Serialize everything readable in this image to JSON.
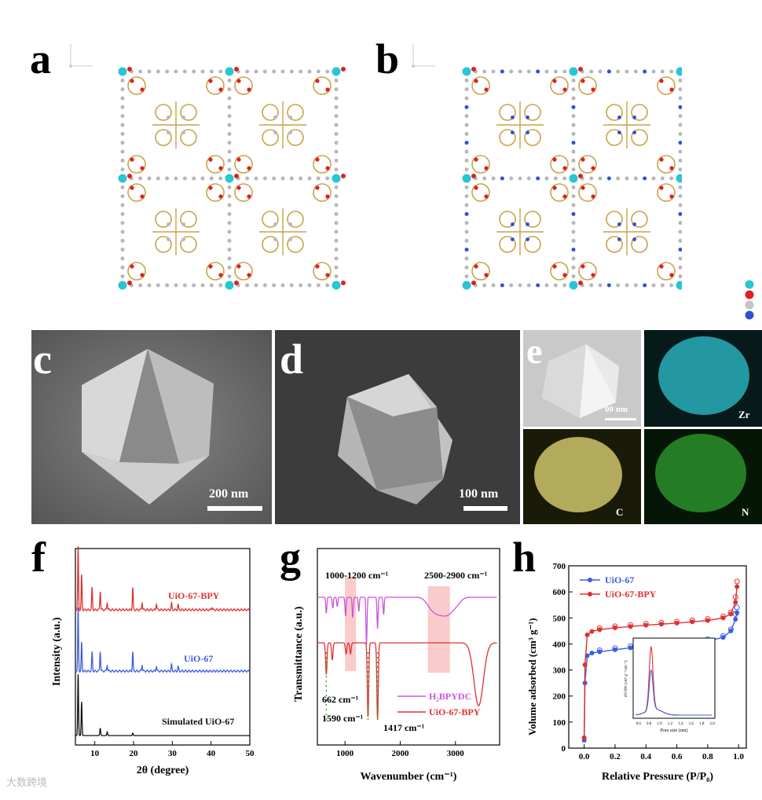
{
  "panels": {
    "a": "a",
    "b": "b",
    "c": "c",
    "d": "d",
    "e": "e",
    "f": "f",
    "g": "g",
    "h": "h"
  },
  "sem": {
    "c_scale": "200 nm",
    "d_scale": "100 nm",
    "e_scale": "00 nm",
    "eds_labels": [
      "Zr",
      "C",
      "N"
    ]
  },
  "colors": {
    "zr": "#27c6d4",
    "o": "#e02020",
    "c": "#b8b8b8",
    "n": "#3050d0",
    "bond": "#c9a24a",
    "uio67": "#3b5de0",
    "uio67bpy": "#e03030",
    "simulated": "#111111",
    "h2bpydc": "#cc55dd",
    "highlight": "#f5a0a0"
  },
  "watermark": "大数跨境",
  "chart_data": [
    {
      "panel": "f",
      "type": "line",
      "xlabel": "2θ (degree)",
      "ylabel": "Intensity (a.u.)",
      "xlim": [
        5,
        50
      ],
      "xticks": [
        10,
        20,
        30,
        40,
        50
      ],
      "series": [
        {
          "name": "UiO-67-BPY",
          "peaks": [
            [
              5.7,
              1.0
            ],
            [
              6.6,
              0.55
            ],
            [
              9.3,
              0.35
            ],
            [
              11.4,
              0.3
            ],
            [
              13.2,
              0.12
            ],
            [
              19.8,
              0.35
            ],
            [
              22.2,
              0.12
            ],
            [
              25.9,
              0.1
            ],
            [
              29.8,
              0.1
            ],
            [
              31.5,
              0.08
            ],
            [
              40.2,
              0.05
            ]
          ]
        },
        {
          "name": "UiO-67",
          "peaks": [
            [
              5.7,
              1.0
            ],
            [
              6.6,
              0.45
            ],
            [
              9.3,
              0.3
            ],
            [
              11.4,
              0.32
            ],
            [
              13.2,
              0.1
            ],
            [
              19.8,
              0.3
            ],
            [
              22.2,
              0.1
            ],
            [
              25.9,
              0.08
            ],
            [
              29.8,
              0.1
            ],
            [
              31.5,
              0.07
            ]
          ]
        },
        {
          "name": "Simulated UiO-67",
          "peaks": [
            [
              5.7,
              1.0
            ],
            [
              6.6,
              0.55
            ],
            [
              11.4,
              0.12
            ],
            [
              13.2,
              0.06
            ],
            [
              19.8,
              0.04
            ]
          ]
        }
      ]
    },
    {
      "panel": "g",
      "type": "line",
      "xlabel": "Wavenumber (cm⁻¹)",
      "ylabel": "Transmittance (a.u.)",
      "xlim": [
        500,
        3800
      ],
      "xticks": [
        1000,
        2000,
        3000
      ],
      "annotations": [
        "1000-1200 cm⁻¹",
        "2500-2900 cm⁻¹",
        "662 cm⁻¹",
        "1590 cm⁻¹",
        "1417 cm⁻¹"
      ],
      "highlight_ranges": [
        [
          1000,
          1200
        ],
        [
          2500,
          2900
        ]
      ],
      "series": [
        {
          "name": "H₂BPYDC"
        },
        {
          "name": "UiO-67-BPY"
        }
      ]
    },
    {
      "panel": "h",
      "type": "line",
      "xlabel": "Relative Pressure (P/P₀)",
      "ylabel": "Volume adsorbed (cm³ g⁻¹)",
      "xlim": [
        -0.1,
        1.05
      ],
      "ylim": [
        0,
        700
      ],
      "xticks": [
        0.0,
        0.2,
        0.4,
        0.6,
        0.8,
        1.0
      ],
      "yticks": [
        0,
        100,
        200,
        300,
        400,
        500,
        600,
        700
      ],
      "series": [
        {
          "name": "UiO-67",
          "x": [
            0.0,
            0.005,
            0.02,
            0.05,
            0.1,
            0.2,
            0.3,
            0.4,
            0.5,
            0.6,
            0.7,
            0.8,
            0.9,
            0.95,
            0.98,
            0.99
          ],
          "y": [
            30,
            250,
            355,
            365,
            370,
            378,
            385,
            390,
            395,
            400,
            405,
            412,
            425,
            450,
            495,
            520
          ]
        },
        {
          "name": "UiO-67-BPY",
          "x": [
            0.0,
            0.005,
            0.02,
            0.05,
            0.1,
            0.2,
            0.3,
            0.4,
            0.5,
            0.6,
            0.7,
            0.8,
            0.9,
            0.95,
            0.98,
            0.99
          ],
          "y": [
            40,
            320,
            435,
            448,
            455,
            462,
            467,
            472,
            476,
            480,
            485,
            490,
            500,
            515,
            560,
            620
          ]
        }
      ],
      "inset": {
        "xlabel": "Pore size (nm)",
        "ylabel": "dV/dW (cm³ g⁻¹ nm⁻¹)",
        "xticks": [
          "0.6",
          "0.8",
          "1.0",
          "1.2",
          "1.4",
          "1.6",
          "1.8",
          "2.0"
        ]
      }
    }
  ]
}
